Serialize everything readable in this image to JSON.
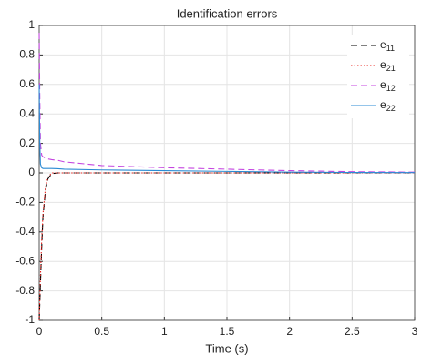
{
  "chart_data": {
    "type": "line",
    "title": "Identification errors",
    "x_label": "Time (s)",
    "x": [
      0,
      0.005,
      0.01,
      0.02,
      0.03,
      0.05,
      0.07,
      0.1,
      0.15,
      0.2,
      0.5,
      1,
      1.5,
      2,
      2.5,
      3
    ],
    "series": [
      {
        "name": "e11",
        "color": "#000000",
        "linestyle": "dashed",
        "values": [
          -1,
          -0.88,
          -0.75,
          -0.5,
          -0.3,
          -0.12,
          -0.04,
          -0.005,
          0,
          0,
          0,
          0,
          0,
          0,
          0,
          0
        ]
      },
      {
        "name": "e21",
        "color": "#e8231e",
        "linestyle": "dotted",
        "values": [
          -1,
          -0.85,
          -0.7,
          -0.45,
          -0.28,
          -0.1,
          -0.03,
          0,
          0,
          0,
          0,
          0,
          0,
          0,
          0,
          0
        ]
      },
      {
        "name": "e12",
        "color": "#c445e0",
        "linestyle": "dashed",
        "values": [
          0.95,
          0.5,
          0.2,
          0.12,
          0.11,
          0.1,
          0.095,
          0.09,
          0.085,
          0.075,
          0.05,
          0.035,
          0.025,
          0.015,
          0.008,
          0.005
        ]
      },
      {
        "name": "e22",
        "color": "#2b8bd4",
        "linestyle": "solid",
        "values": [
          0.6,
          0.2,
          0.06,
          0.035,
          0.03,
          0.03,
          0.03,
          0.03,
          0.028,
          0.025,
          0.02,
          0.015,
          0.01,
          0.005,
          0.003,
          0.002
        ]
      }
    ],
    "xlim": [
      0,
      3
    ],
    "xticks": [
      0,
      0.5,
      1,
      1.5,
      2,
      2.5,
      3
    ],
    "ylim": [
      -1,
      1
    ],
    "yticks": [
      -1,
      -0.8,
      -0.6,
      -0.4,
      -0.2,
      0,
      0.2,
      0.4,
      0.6,
      0.8,
      1
    ],
    "grid": true,
    "legend": "top-right"
  }
}
